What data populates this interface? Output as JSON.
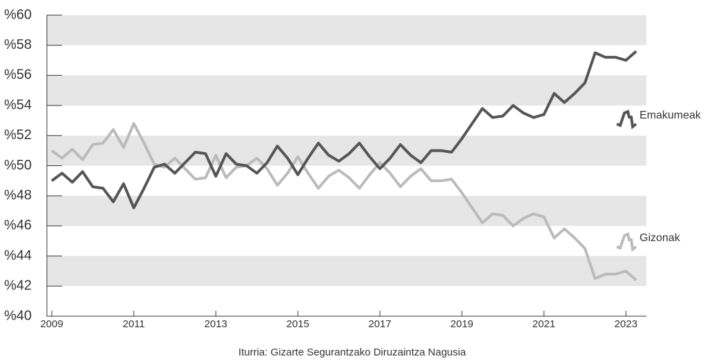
{
  "chart_data": {
    "type": "line",
    "source": "Iturria: Gizarte Segurantzako Diruzaintza Nagusia",
    "x": [
      2009,
      2009.25,
      2009.5,
      2009.75,
      2010,
      2010.25,
      2010.5,
      2010.75,
      2011,
      2011.25,
      2011.5,
      2011.75,
      2012,
      2012.25,
      2012.5,
      2012.75,
      2013,
      2013.25,
      2013.5,
      2013.75,
      2014,
      2014.25,
      2014.5,
      2014.75,
      2015,
      2015.25,
      2015.5,
      2015.75,
      2016,
      2016.25,
      2016.5,
      2016.75,
      2017,
      2017.25,
      2017.5,
      2017.75,
      2018,
      2018.25,
      2018.5,
      2018.75,
      2019,
      2019.25,
      2019.5,
      2019.75,
      2020,
      2020.25,
      2020.5,
      2020.75,
      2021,
      2021.25,
      2021.5,
      2021.75,
      2022,
      2022.25,
      2022.5,
      2022.75,
      2023,
      2023.25
    ],
    "series": [
      {
        "name": "Emakumeak",
        "color": "#555555",
        "values": [
          49,
          49.5,
          48.9,
          49.6,
          48.6,
          48.5,
          47.6,
          48.8,
          47.2,
          48.5,
          49.9,
          50.1,
          49.5,
          50.2,
          50.9,
          50.8,
          49.3,
          50.8,
          50.1,
          50,
          49.5,
          50.2,
          51.3,
          50.5,
          49.4,
          50.5,
          51.5,
          50.7,
          50.3,
          50.8,
          51.5,
          50.6,
          49.8,
          50.5,
          51.4,
          50.7,
          50.2,
          51,
          51,
          50.9,
          51.8,
          52.8,
          53.8,
          53.2,
          53.3,
          54,
          53.5,
          53.2,
          53.4,
          54.8,
          54.2,
          54.8,
          55.5,
          57.5,
          57.2,
          57.2,
          57,
          57.6
        ]
      },
      {
        "name": "Gizonak",
        "color": "#bbbbbb",
        "values": [
          51,
          50.5,
          51.1,
          50.4,
          51.4,
          51.5,
          52.4,
          51.2,
          52.8,
          51.5,
          50.1,
          49.9,
          50.5,
          49.8,
          49.1,
          49.2,
          50.7,
          49.2,
          49.9,
          50,
          50.5,
          49.8,
          48.7,
          49.5,
          50.6,
          49.5,
          48.5,
          49.3,
          49.7,
          49.2,
          48.5,
          49.4,
          50.2,
          49.5,
          48.6,
          49.3,
          49.8,
          49,
          49,
          49.1,
          48.2,
          47.2,
          46.2,
          46.8,
          46.7,
          46,
          46.5,
          46.8,
          46.6,
          45.2,
          45.8,
          45.2,
          44.5,
          42.5,
          42.8,
          42.8,
          43,
          42.4
        ]
      }
    ],
    "xlim": [
      2008.88,
      2023.5
    ],
    "xticks": [
      2009,
      2011,
      2013,
      2015,
      2017,
      2019,
      2021,
      2023
    ],
    "ylim": [
      40,
      60
    ],
    "yticks": [
      {
        "value": 40,
        "label": "%40"
      },
      {
        "value": 42,
        "label": "%42"
      },
      {
        "value": 44,
        "label": "%44"
      },
      {
        "value": 46,
        "label": "%46"
      },
      {
        "value": 48,
        "label": "%48"
      },
      {
        "value": 50,
        "label": "%50"
      },
      {
        "value": 52,
        "label": "%52"
      },
      {
        "value": 54,
        "label": "%54"
      },
      {
        "value": 56,
        "label": "%56"
      },
      {
        "value": 58,
        "label": "%58"
      },
      {
        "value": 60,
        "label": "%60"
      }
    ],
    "band_color": "#e6e6e6"
  }
}
